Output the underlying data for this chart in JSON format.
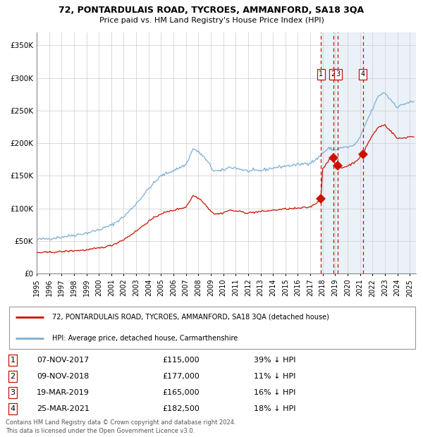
{
  "title": "72, PONTARDULAIS ROAD, TYCROES, AMMANFORD, SA18 3QA",
  "subtitle": "Price paid vs. HM Land Registry's House Price Index (HPI)",
  "legend_line1": "72, PONTARDULAIS ROAD, TYCROES, AMMANFORD, SA18 3QA (detached house)",
  "legend_line2": "HPI: Average price, detached house, Carmarthenshire",
  "footer1": "Contains HM Land Registry data © Crown copyright and database right 2024.",
  "footer2": "This data is licensed under the Open Government Licence v3.0.",
  "transactions": [
    {
      "num": 1,
      "date": "07-NOV-2017",
      "price": 115000,
      "pct": "39% ↓ HPI",
      "date_val": 2017.854
    },
    {
      "num": 2,
      "date": "09-NOV-2018",
      "price": 177000,
      "pct": "11% ↓ HPI",
      "date_val": 2018.856
    },
    {
      "num": 3,
      "date": "19-MAR-2019",
      "price": 165000,
      "pct": "16% ↓ HPI",
      "date_val": 2019.214
    },
    {
      "num": 4,
      "date": "25-MAR-2021",
      "price": 182500,
      "pct": "18% ↓ HPI",
      "date_val": 2021.228
    }
  ],
  "hpi_color": "#7bafd4",
  "price_color": "#cc1100",
  "bg_shade_color": "#dde8f5",
  "vline_color": "#cc1100",
  "ylim": [
    0,
    370000
  ],
  "xlim_start": 1995.0,
  "xlim_end": 2025.5,
  "yticks": [
    0,
    50000,
    100000,
    150000,
    200000,
    250000,
    300000,
    350000
  ],
  "ytick_labels": [
    "£0",
    "£50K",
    "£100K",
    "£150K",
    "£200K",
    "£250K",
    "£300K",
    "£350K"
  ],
  "hpi_anchors": [
    [
      1995.0,
      52000
    ],
    [
      1996.0,
      53500
    ],
    [
      1997.0,
      56000
    ],
    [
      1998.0,
      59000
    ],
    [
      1999.0,
      62000
    ],
    [
      2000.0,
      67000
    ],
    [
      2001.0,
      74000
    ],
    [
      2002.0,
      87000
    ],
    [
      2003.0,
      107000
    ],
    [
      2004.0,
      130000
    ],
    [
      2005.0,
      150000
    ],
    [
      2006.0,
      158000
    ],
    [
      2007.0,
      167000
    ],
    [
      2007.6,
      192000
    ],
    [
      2008.3,
      182000
    ],
    [
      2008.8,
      170000
    ],
    [
      2009.2,
      158000
    ],
    [
      2009.8,
      157000
    ],
    [
      2010.5,
      163000
    ],
    [
      2011.0,
      162000
    ],
    [
      2012.0,
      157000
    ],
    [
      2013.0,
      158000
    ],
    [
      2014.0,
      162000
    ],
    [
      2015.0,
      165000
    ],
    [
      2016.0,
      167000
    ],
    [
      2017.0,
      170000
    ],
    [
      2017.5,
      175000
    ],
    [
      2018.0,
      185000
    ],
    [
      2018.5,
      192000
    ],
    [
      2019.0,
      190000
    ],
    [
      2019.5,
      193000
    ],
    [
      2020.0,
      194000
    ],
    [
      2020.5,
      196000
    ],
    [
      2021.0,
      208000
    ],
    [
      2021.5,
      232000
    ],
    [
      2022.0,
      252000
    ],
    [
      2022.5,
      273000
    ],
    [
      2023.0,
      278000
    ],
    [
      2023.3,
      270000
    ],
    [
      2023.8,
      260000
    ],
    [
      2024.0,
      255000
    ],
    [
      2024.5,
      260000
    ],
    [
      2025.0,
      263000
    ]
  ],
  "price_anchors": [
    [
      1995.0,
      32000
    ],
    [
      1996.0,
      32500
    ],
    [
      1997.0,
      33500
    ],
    [
      1998.0,
      35000
    ],
    [
      1999.0,
      36000
    ],
    [
      2000.0,
      39000
    ],
    [
      2001.0,
      43000
    ],
    [
      2002.0,
      52000
    ],
    [
      2003.0,
      65000
    ],
    [
      2004.0,
      80000
    ],
    [
      2005.0,
      92000
    ],
    [
      2006.0,
      97000
    ],
    [
      2007.0,
      102000
    ],
    [
      2007.6,
      120000
    ],
    [
      2008.3,
      112000
    ],
    [
      2008.8,
      100000
    ],
    [
      2009.3,
      91000
    ],
    [
      2009.8,
      92000
    ],
    [
      2010.5,
      97000
    ],
    [
      2011.0,
      96000
    ],
    [
      2012.0,
      93000
    ],
    [
      2013.0,
      95000
    ],
    [
      2014.0,
      97000
    ],
    [
      2015.0,
      99000
    ],
    [
      2016.0,
      100000
    ],
    [
      2017.0,
      102000
    ],
    [
      2017.85,
      113000
    ],
    [
      2017.854,
      115000
    ],
    [
      2018.0,
      160000
    ],
    [
      2018.5,
      175000
    ],
    [
      2018.856,
      177000
    ],
    [
      2019.0,
      168000
    ],
    [
      2019.214,
      165000
    ],
    [
      2019.5,
      162000
    ],
    [
      2020.0,
      165000
    ],
    [
      2020.5,
      170000
    ],
    [
      2021.0,
      178000
    ],
    [
      2021.228,
      182500
    ],
    [
      2021.5,
      195000
    ],
    [
      2022.0,
      212000
    ],
    [
      2022.5,
      225000
    ],
    [
      2023.0,
      228000
    ],
    [
      2023.3,
      222000
    ],
    [
      2023.8,
      212000
    ],
    [
      2024.0,
      207000
    ],
    [
      2024.5,
      208000
    ],
    [
      2025.0,
      210000
    ]
  ]
}
